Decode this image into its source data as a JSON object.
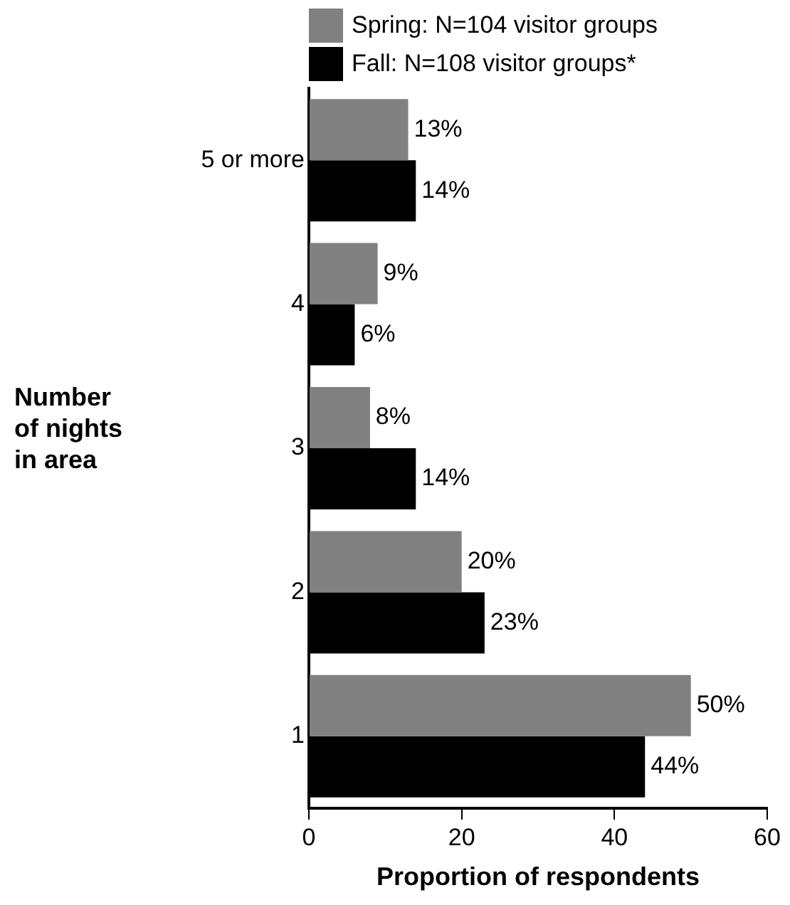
{
  "chart_data": {
    "type": "bar",
    "orientation": "horizontal",
    "xlabel": "Proportion of respondents",
    "ylabel": "Number\nof nights\nin area",
    "categories": [
      "5 or more",
      "4",
      "3",
      "2",
      "1"
    ],
    "series": [
      {
        "name": "Spring: N=104 visitor groups",
        "color": "#808080",
        "values": [
          13,
          9,
          8,
          20,
          50
        ],
        "value_labels": [
          "13%",
          "9%",
          "8%",
          "20%",
          "50%"
        ]
      },
      {
        "name": "Fall: N=108 visitor groups*",
        "color": "#000000",
        "values": [
          14,
          6,
          14,
          23,
          44
        ],
        "value_labels": [
          "14%",
          "6%",
          "14%",
          "23%",
          "44%"
        ]
      }
    ],
    "xlim": [
      0,
      60
    ],
    "xticks": [
      0,
      20,
      40,
      60
    ],
    "grid": false,
    "legend": "top"
  }
}
